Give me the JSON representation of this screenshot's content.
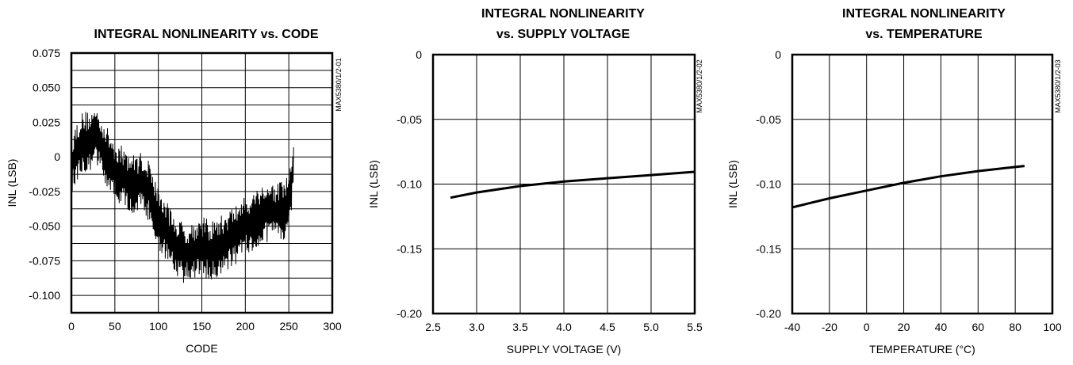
{
  "chart_data": [
    {
      "type": "line",
      "title_lines": [
        "INTEGRAL NONLINEARITY vs. CODE"
      ],
      "xlabel": "CODE",
      "ylabel": "INL (LSB)",
      "figure_code": "MAX5380/1/2-01",
      "xlim": [
        0,
        300
      ],
      "ylim": [
        -0.1125,
        0.075
      ],
      "x_ticks": [
        "0",
        "50",
        "100",
        "150",
        "200",
        "250",
        "300"
      ],
      "y_ticks": [
        "0.075",
        "0.050",
        "0.025",
        "0",
        "-0.025",
        "-0.050",
        "-0.075",
        "-0.100"
      ],
      "grid": true,
      "line_color": "#000000",
      "noisy": true,
      "segments": [
        {
          "x": 0,
          "y": -0.005
        },
        {
          "x": 10,
          "y": 0.01
        },
        {
          "x": 20,
          "y": 0.012
        },
        {
          "x": 30,
          "y": 0.015
        },
        {
          "x": 40,
          "y": 0.0
        },
        {
          "x": 50,
          "y": -0.01
        },
        {
          "x": 60,
          "y": -0.015
        },
        {
          "x": 70,
          "y": -0.02
        },
        {
          "x": 80,
          "y": -0.018
        },
        {
          "x": 90,
          "y": -0.025
        },
        {
          "x": 100,
          "y": -0.045
        },
        {
          "x": 110,
          "y": -0.055
        },
        {
          "x": 120,
          "y": -0.065
        },
        {
          "x": 130,
          "y": -0.07
        },
        {
          "x": 140,
          "y": -0.068
        },
        {
          "x": 150,
          "y": -0.065
        },
        {
          "x": 160,
          "y": -0.068
        },
        {
          "x": 170,
          "y": -0.065
        },
        {
          "x": 180,
          "y": -0.06
        },
        {
          "x": 190,
          "y": -0.055
        },
        {
          "x": 200,
          "y": -0.05
        },
        {
          "x": 210,
          "y": -0.045
        },
        {
          "x": 220,
          "y": -0.04
        },
        {
          "x": 230,
          "y": -0.04
        },
        {
          "x": 240,
          "y": -0.04
        },
        {
          "x": 250,
          "y": -0.035
        },
        {
          "x": 255,
          "y": -0.005
        }
      ],
      "envelope_half_width": 0.022
    },
    {
      "type": "line",
      "title_lines": [
        "INTEGRAL NONLINEARITY",
        "vs. SUPPLY VOLTAGE"
      ],
      "xlabel": "SUPPLY VOLTAGE (V)",
      "ylabel": "INL (LSB)",
      "figure_code": "MAX5380/1/2-02",
      "xlim": [
        2.5,
        5.5
      ],
      "ylim": [
        -0.2,
        0
      ],
      "x_ticks": [
        "2.5",
        "3.0",
        "3.5",
        "4.0",
        "4.5",
        "5.0",
        "5.5"
      ],
      "y_ticks": [
        "0",
        "-0.05",
        "-0.10",
        "-0.15",
        "-0.20"
      ],
      "grid": true,
      "line_color": "#000000",
      "series": [
        {
          "x": [
            2.7,
            3.0,
            3.5,
            4.0,
            4.5,
            5.0,
            5.5
          ],
          "y": [
            -0.1105,
            -0.1065,
            -0.1015,
            -0.098,
            -0.0955,
            -0.093,
            -0.0905
          ]
        }
      ]
    },
    {
      "type": "line",
      "title_lines": [
        "INTEGRAL NONLINEARITY",
        "vs. TEMPERATURE"
      ],
      "xlabel": "TEMPERATURE (°C)",
      "ylabel": "INL (LSB)",
      "figure_code": "MAX5380/1/2-03",
      "xlim": [
        -40,
        100
      ],
      "ylim": [
        -0.2,
        0
      ],
      "x_ticks": [
        "-40",
        "-20",
        "0",
        "20",
        "40",
        "60",
        "80",
        "100"
      ],
      "y_ticks": [
        "0",
        "-0.05",
        "-0.10",
        "-0.15",
        "-0.20"
      ],
      "grid": true,
      "line_color": "#000000",
      "series": [
        {
          "x": [
            -40,
            -20,
            0,
            20,
            40,
            60,
            85
          ],
          "y": [
            -0.118,
            -0.111,
            -0.105,
            -0.099,
            -0.094,
            -0.09,
            -0.086
          ]
        }
      ]
    }
  ]
}
